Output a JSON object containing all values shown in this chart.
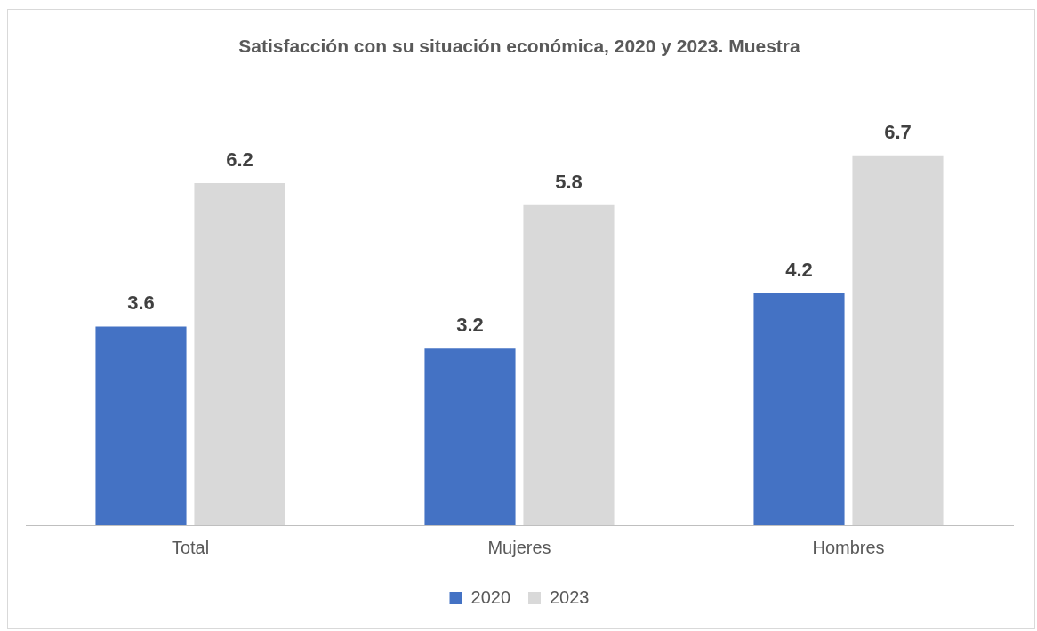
{
  "chart_data": {
    "type": "bar",
    "title": "Satisfacción con su situación económica, 2020 y 2023. Muestra",
    "categories": [
      "Total",
      "Mujeres",
      "Hombres"
    ],
    "series": [
      {
        "name": "2020",
        "color": "#4472c4",
        "values": [
          3.6,
          3.2,
          4.2
        ]
      },
      {
        "name": "2023",
        "color": "#d9d9d9",
        "values": [
          6.2,
          5.8,
          6.7
        ]
      }
    ],
    "data_labels": true,
    "grid": false,
    "legend": "bottom",
    "tick_labels": "x"
  }
}
